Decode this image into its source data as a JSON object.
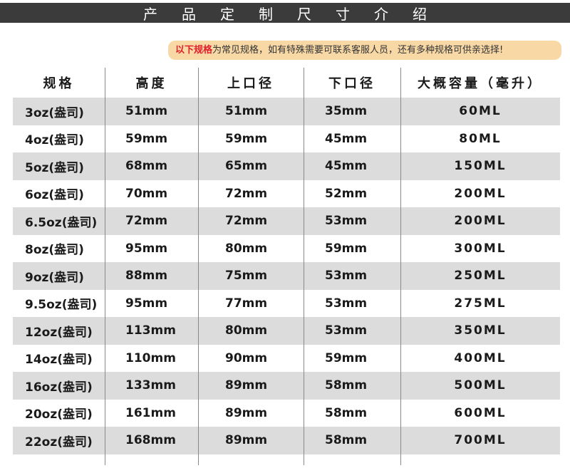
{
  "banner": {
    "title": "产品定制尺寸介绍"
  },
  "notice": {
    "highlight": "以下规格",
    "text": "为常见规格，如有特殊需要可联系客服人员，还有多种规格可供亲选择!"
  },
  "table": {
    "headers": [
      "规格",
      "高度",
      "上口径",
      "下口径",
      "大概容量（毫升）"
    ],
    "rows": [
      [
        "3oz(盎司)",
        "51mm",
        "51mm",
        "35mm",
        "60ML"
      ],
      [
        "4oz(盎司)",
        "59mm",
        "59mm",
        "45mm",
        "80ML"
      ],
      [
        "5oz(盎司)",
        "68mm",
        "65mm",
        "45mm",
        "150ML"
      ],
      [
        "6oz(盎司)",
        "70mm",
        "72mm",
        "52mm",
        "200ML"
      ],
      [
        "6.5oz(盎司)",
        "72mm",
        "72mm",
        "53mm",
        "200ML"
      ],
      [
        "8oz(盎司)",
        "95mm",
        "80mm",
        "59mm",
        "300ML"
      ],
      [
        "9oz(盎司)",
        "88mm",
        "75mm",
        "53mm",
        "250ML"
      ],
      [
        "9.5oz(盎司)",
        "95mm",
        "77mm",
        "53mm",
        "275ML"
      ],
      [
        "12oz(盎司)",
        "113mm",
        "80mm",
        "53mm",
        "350ML"
      ],
      [
        "14oz(盎司)",
        "110mm",
        "90mm",
        "59mm",
        "400ML"
      ],
      [
        "16oz(盎司)",
        "133mm",
        "89mm",
        "58mm",
        "500ML"
      ],
      [
        "20oz(盎司)",
        "161mm",
        "89mm",
        "58mm",
        "600ML"
      ],
      [
        "22oz(盎司)",
        "168mm",
        "89mm",
        "58mm",
        "700ML"
      ]
    ]
  },
  "colors": {
    "banner": "#3b3b3b",
    "notice_bg": "#f8d9a6",
    "highlight": "#e0202a",
    "stripe": "#dcdcdc"
  }
}
